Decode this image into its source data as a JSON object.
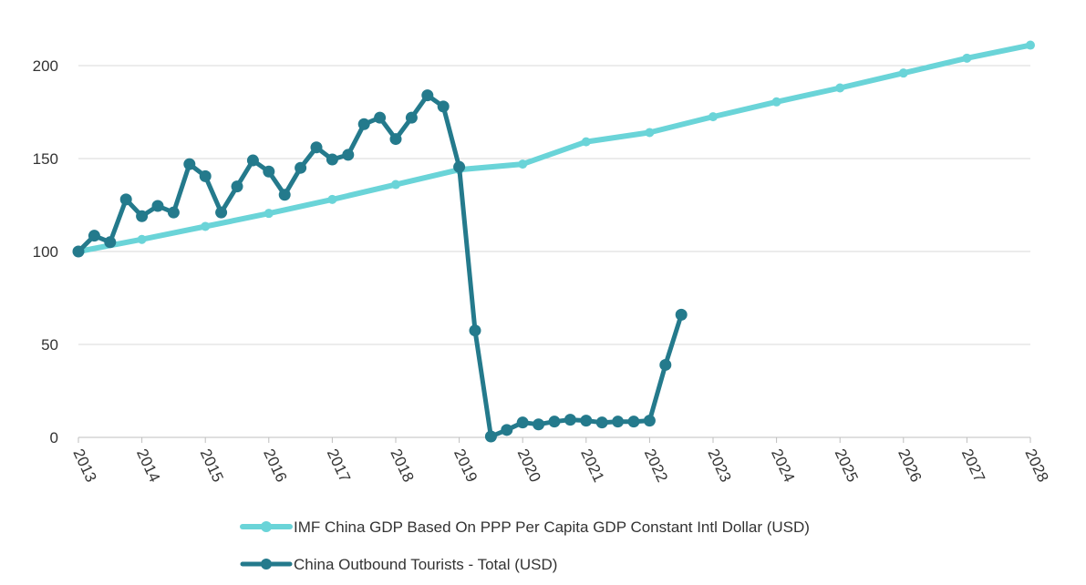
{
  "chart_data": {
    "type": "line",
    "title": "",
    "xlabel": "",
    "ylabel": "",
    "xlim": [
      2013,
      2028
    ],
    "ylim": [
      0,
      200
    ],
    "x_ticks": [
      "2013",
      "2014",
      "2015",
      "2016",
      "2017",
      "2018",
      "2019",
      "2020",
      "2021",
      "2022",
      "2023",
      "2024",
      "2025",
      "2026",
      "2027",
      "2028"
    ],
    "y_ticks": [
      "0",
      "50",
      "100",
      "150",
      "200"
    ],
    "grid": true,
    "legend_position": "bottom",
    "series": [
      {
        "name": "IMF China GDP Based On PPP Per Capita GDP Constant Intl Dollar (USD)",
        "color": "#6ad4d8",
        "points": [
          {
            "x": 2013,
            "y": 100
          },
          {
            "x": 2014,
            "y": 106.5
          },
          {
            "x": 2015,
            "y": 113.5
          },
          {
            "x": 2016,
            "y": 120.5
          },
          {
            "x": 2017,
            "y": 128
          },
          {
            "x": 2018,
            "y": 136
          },
          {
            "x": 2019,
            "y": 144
          },
          {
            "x": 2020,
            "y": 147
          },
          {
            "x": 2021,
            "y": 159
          },
          {
            "x": 2022,
            "y": 164
          },
          {
            "x": 2023,
            "y": 172.5
          },
          {
            "x": 2024,
            "y": 180.5
          },
          {
            "x": 2025,
            "y": 188
          },
          {
            "x": 2026,
            "y": 196
          },
          {
            "x": 2027,
            "y": 204
          },
          {
            "x": 2028,
            "y": 211
          }
        ]
      },
      {
        "name": "China Outbound Tourists - Total (USD)",
        "color": "#247a8c",
        "points": [
          {
            "x": 2013.0,
            "y": 100
          },
          {
            "x": 2013.25,
            "y": 108.5
          },
          {
            "x": 2013.5,
            "y": 105
          },
          {
            "x": 2013.75,
            "y": 128
          },
          {
            "x": 2014.0,
            "y": 119
          },
          {
            "x": 2014.25,
            "y": 124.5
          },
          {
            "x": 2014.5,
            "y": 121
          },
          {
            "x": 2014.75,
            "y": 147
          },
          {
            "x": 2015.0,
            "y": 140.5
          },
          {
            "x": 2015.25,
            "y": 121
          },
          {
            "x": 2015.5,
            "y": 135
          },
          {
            "x": 2015.75,
            "y": 149
          },
          {
            "x": 2016.0,
            "y": 143
          },
          {
            "x": 2016.25,
            "y": 130.5
          },
          {
            "x": 2016.5,
            "y": 145
          },
          {
            "x": 2016.75,
            "y": 156
          },
          {
            "x": 2017.0,
            "y": 149.5
          },
          {
            "x": 2017.25,
            "y": 152
          },
          {
            "x": 2017.5,
            "y": 168.5
          },
          {
            "x": 2017.75,
            "y": 172
          },
          {
            "x": 2018.0,
            "y": 160.5
          },
          {
            "x": 2018.25,
            "y": 172
          },
          {
            "x": 2018.5,
            "y": 184
          },
          {
            "x": 2018.75,
            "y": 178
          },
          {
            "x": 2019.0,
            "y": 145.5
          },
          {
            "x": 2019.25,
            "y": 57.5
          },
          {
            "x": 2019.5,
            "y": 0.5
          },
          {
            "x": 2019.75,
            "y": 4
          },
          {
            "x": 2020.0,
            "y": 8
          },
          {
            "x": 2020.25,
            "y": 7
          },
          {
            "x": 2020.5,
            "y": 8.5
          },
          {
            "x": 2020.75,
            "y": 9.5
          },
          {
            "x": 2021.0,
            "y": 9
          },
          {
            "x": 2021.25,
            "y": 8
          },
          {
            "x": 2021.5,
            "y": 8.5
          },
          {
            "x": 2021.75,
            "y": 8.5
          },
          {
            "x": 2022.0,
            "y": 9
          },
          {
            "x": 2022.25,
            "y": 39
          },
          {
            "x": 2022.5,
            "y": 66
          }
        ]
      }
    ]
  }
}
